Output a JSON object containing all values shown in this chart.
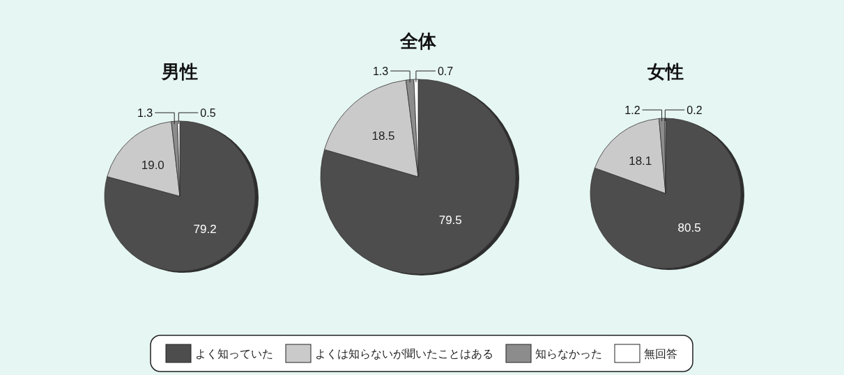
{
  "chart_data": [
    {
      "type": "pie",
      "title": "男性",
      "categories": [
        null,
        null,
        null,
        null
      ],
      "values": [
        79.2,
        19.0,
        1.3,
        0.5
      ],
      "value_labels": [
        "79.2",
        "19.0",
        "1.3",
        "0.5"
      ],
      "colors": [
        "#4d4d4d",
        "#cacaca",
        "#8c8c8c",
        "#ffffff"
      ],
      "legend": false
    },
    {
      "type": "pie",
      "title": "全体",
      "categories": [
        "よく知っていた",
        "よくは知らないが聞いたことはある",
        "知らなかった",
        "無回答"
      ],
      "values": [
        79.5,
        18.5,
        1.3,
        0.7
      ],
      "value_labels": [
        "79.5",
        "18.5",
        "1.3",
        "0.7"
      ],
      "colors": [
        "#4d4d4d",
        "#cacaca",
        "#8c8c8c",
        "#ffffff"
      ],
      "legend": "bottom"
    },
    {
      "type": "pie",
      "title": "女性",
      "categories": [
        null,
        null,
        null,
        null
      ],
      "values": [
        80.5,
        18.1,
        1.2,
        0.2
      ],
      "value_labels": [
        "80.5",
        "18.1",
        "1.2",
        "0.2"
      ],
      "colors": [
        "#4d4d4d",
        "#cacaca",
        "#8c8c8c",
        "#ffffff"
      ],
      "legend": false
    }
  ]
}
